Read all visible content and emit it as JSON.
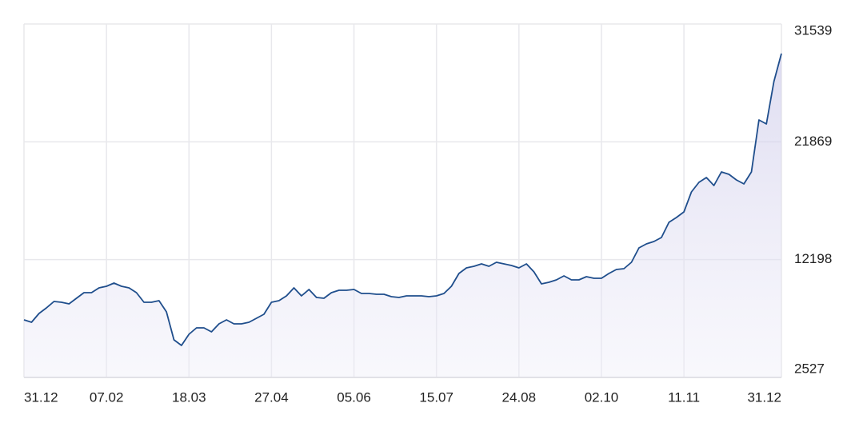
{
  "chart_data": {
    "type": "line",
    "categories": [
      "31.12",
      null,
      null,
      null,
      null,
      null,
      null,
      null,
      null,
      null,
      null,
      "07.02",
      null,
      null,
      null,
      null,
      null,
      null,
      null,
      null,
      null,
      null,
      "18.03",
      null,
      null,
      null,
      null,
      null,
      null,
      null,
      null,
      null,
      null,
      "27.04",
      null,
      null,
      null,
      null,
      null,
      null,
      null,
      null,
      null,
      null,
      "05.06",
      null,
      null,
      null,
      null,
      null,
      null,
      null,
      null,
      null,
      null,
      "15.07",
      null,
      null,
      null,
      null,
      null,
      null,
      null,
      null,
      null,
      null,
      "24.08",
      null,
      null,
      null,
      null,
      null,
      null,
      null,
      null,
      null,
      null,
      "02.10",
      null,
      null,
      null,
      null,
      null,
      null,
      null,
      null,
      null,
      null,
      "11.11",
      null,
      null,
      null,
      null,
      null,
      null,
      null,
      null,
      null,
      null,
      null,
      null,
      "31.12"
    ],
    "series": [
      {
        "color": "#1f4e8c",
        "values": [
          7253,
          7056,
          7778,
          8238,
          8763,
          8697,
          8566,
          9026,
          9485,
          9485,
          9879,
          10010,
          10273,
          10010,
          9879,
          9485,
          8697,
          8697,
          8829,
          7909,
          5612,
          5153,
          6071,
          6597,
          6597,
          6268,
          6925,
          7253,
          6925,
          6925,
          7056,
          7384,
          7713,
          8697,
          8829,
          9222,
          9879,
          9222,
          9747,
          9091,
          9026,
          9485,
          9682,
          9682,
          9747,
          9419,
          9419,
          9353,
          9353,
          9157,
          9091,
          9222,
          9222,
          9222,
          9157,
          9222,
          9419,
          10010,
          11060,
          11520,
          11651,
          11848,
          11651,
          11979,
          11848,
          11717,
          11520,
          11848,
          11192,
          10207,
          10338,
          10535,
          10863,
          10535,
          10535,
          10798,
          10666,
          10666,
          11060,
          11389,
          11454,
          11979,
          13161,
          13489,
          13686,
          14014,
          15261,
          15655,
          16114,
          17755,
          18543,
          18937,
          18280,
          19396,
          19199,
          18740,
          18412,
          19396,
          23663,
          23334,
          26813,
          29111
        ]
      }
    ],
    "ylim": [
      2527,
      31539
    ],
    "yticks": [
      2527,
      12198,
      21869,
      31539
    ],
    "grid": true
  }
}
